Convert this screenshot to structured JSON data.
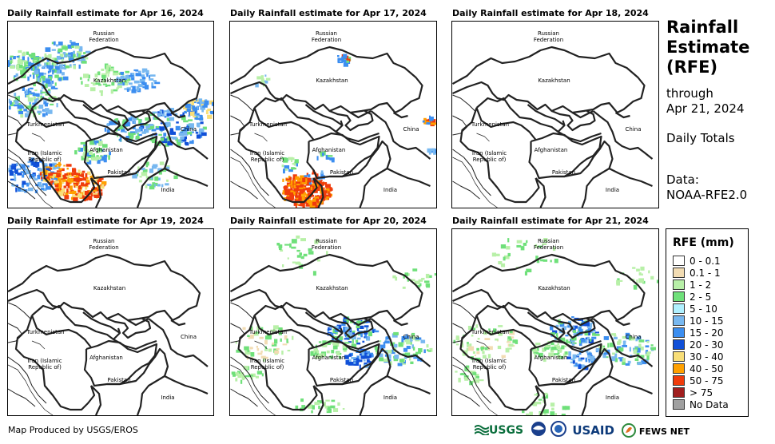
{
  "panels": [
    {
      "title": "Daily Rainfall estimate for Apr 16, 2024",
      "rain": "heavy"
    },
    {
      "title": "Daily Rainfall estimate for Apr 17, 2024",
      "rain": "moderate"
    },
    {
      "title": "Daily Rainfall estimate for Apr 18, 2024",
      "rain": "none"
    },
    {
      "title": "Daily Rainfall estimate for Apr 19, 2024",
      "rain": "none"
    },
    {
      "title": "Daily Rainfall estimate for Apr 20, 2024",
      "rain": "light"
    },
    {
      "title": "Daily Rainfall estimate for Apr 21, 2024",
      "rain": "light"
    }
  ],
  "map_labels": {
    "russia_1": "Russian",
    "russia_2": "Federation",
    "kazakhstan": "Kazakhstan",
    "turkmenistan": "Turkmenistan",
    "iran_1": "Iran  (Islamic",
    "iran_2": "Republic of)",
    "afghanistan": "Afghanistan",
    "pakistan": "Pakistan",
    "china": "China",
    "india": "India"
  },
  "side": {
    "title_1": "Rainfall",
    "title_2": "Estimate",
    "title_3": "(RFE)",
    "through_1": "through",
    "through_2": "Apr 21, 2024",
    "totals": "Daily Totals",
    "data_1": "Data:",
    "data_2": "NOAA-RFE2.0"
  },
  "legend": {
    "title": "RFE (mm)",
    "items": [
      {
        "label": "0 - 0.1",
        "color": "#ffffff"
      },
      {
        "label": "0.1 - 1",
        "color": "#f2dcb3"
      },
      {
        "label": "1 - 2",
        "color": "#b8f0a8"
      },
      {
        "label": "2 - 5",
        "color": "#6fe07a"
      },
      {
        "label": "5 - 10",
        "color": "#b0f0ff"
      },
      {
        "label": "10 - 15",
        "color": "#78b8f0"
      },
      {
        "label": "15 - 20",
        "color": "#3c8ef0"
      },
      {
        "label": "20 - 30",
        "color": "#1050d8"
      },
      {
        "label": "30 - 40",
        "color": "#f8de78"
      },
      {
        "label": "40 - 50",
        "color": "#ffa000"
      },
      {
        "label": "50 - 75",
        "color": "#f03c0c"
      },
      {
        "label": "> 75",
        "color": "#a01e1e"
      },
      {
        "label": "No Data",
        "color": "#a0a0a0"
      }
    ]
  },
  "footer": "Map Produced by USGS/EROS",
  "logos": {
    "usgs": "USGS",
    "usaid": "USAID",
    "fewsnet": "FEWS NET"
  }
}
